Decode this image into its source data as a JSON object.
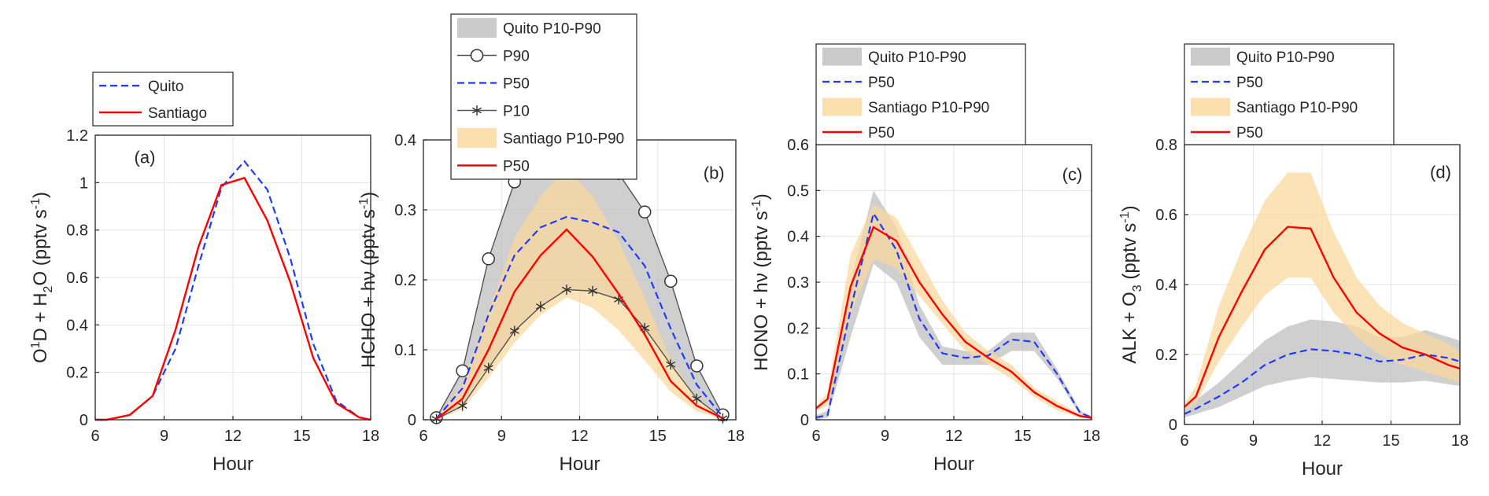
{
  "chart_data": [
    {
      "type": "line",
      "panel_label": "(a)",
      "xlabel": "Hour",
      "ylabel": [
        "O",
        "1",
        "D + H",
        "2",
        "O (pptv s",
        "-1",
        ")"
      ],
      "xlim": [
        6,
        18
      ],
      "ylim": [
        0,
        1.2
      ],
      "xticks": [
        "6",
        "9",
        "12",
        "15",
        "18"
      ],
      "yticks": [
        "0",
        "0.2",
        "0.4",
        "0.6",
        "0.8",
        "1",
        "1.2"
      ],
      "grid": true,
      "legend_position": "top-left-outside",
      "x": [
        6,
        6.5,
        7.5,
        8.5,
        9.5,
        10.5,
        11.5,
        12.5,
        13.5,
        14.5,
        15.5,
        16.5,
        17.5,
        18
      ],
      "series": [
        {
          "name": "Quito",
          "style": "dashed",
          "color": "#1f3bff",
          "values": [
            0,
            0,
            0.02,
            0.1,
            0.3,
            0.65,
            0.98,
            1.09,
            0.97,
            0.68,
            0.32,
            0.08,
            0.01,
            0
          ]
        },
        {
          "name": "Santiago",
          "style": "solid",
          "color": "#ff0000",
          "values": [
            0,
            0,
            0.02,
            0.1,
            0.38,
            0.73,
            0.99,
            1.02,
            0.84,
            0.58,
            0.26,
            0.07,
            0.01,
            0
          ]
        }
      ],
      "bands": []
    },
    {
      "type": "line",
      "panel_label": "(b)",
      "xlabel": "Hour",
      "ylabel": [
        "HCHO + hν (pptv s",
        "-1",
        ")"
      ],
      "xlim": [
        6,
        18
      ],
      "ylim": [
        0,
        0.4
      ],
      "xticks": [
        "6",
        "9",
        "12",
        "15",
        "18"
      ],
      "yticks": [
        "0",
        "0.1",
        "0.2",
        "0.3",
        "0.4"
      ],
      "grid": true,
      "legend_position": "top-outside",
      "x": [
        6.5,
        7.5,
        8.5,
        9.5,
        10.5,
        11.5,
        12.5,
        13.5,
        14.5,
        15.5,
        16.5,
        17.5
      ],
      "series": [
        {
          "name": "P90",
          "style": "circle-marker",
          "color": "#555555",
          "values": [
            0.003,
            0.07,
            0.23,
            0.34,
            0.375,
            0.382,
            0.367,
            0.352,
            0.297,
            0.198,
            0.077,
            0.007
          ]
        },
        {
          "name": "P50",
          "style": "dashed",
          "color": "#1f3bff",
          "values": [
            0.002,
            0.045,
            0.15,
            0.235,
            0.275,
            0.29,
            0.282,
            0.268,
            0.22,
            0.13,
            0.05,
            0.004
          ]
        },
        {
          "name": "P10",
          "style": "star-marker",
          "color": "#555555",
          "values": [
            0.001,
            0.02,
            0.074,
            0.127,
            0.162,
            0.186,
            0.184,
            0.172,
            0.131,
            0.079,
            0.03,
            0.002
          ]
        },
        {
          "name": "P50",
          "style": "solid",
          "color": "#ff0000",
          "values": [
            0.001,
            0.03,
            0.1,
            0.183,
            0.235,
            0.272,
            0.233,
            0.18,
            0.122,
            0.055,
            0.02,
            0.002
          ]
        }
      ],
      "bands": [
        {
          "name": "Quito P10-P90",
          "color": "#bdbdbd",
          "lower": [
            0.001,
            0.02,
            0.074,
            0.127,
            0.162,
            0.186,
            0.184,
            0.172,
            0.131,
            0.079,
            0.03,
            0.002
          ],
          "upper": [
            0.003,
            0.07,
            0.23,
            0.34,
            0.375,
            0.382,
            0.367,
            0.352,
            0.297,
            0.198,
            0.077,
            0.007
          ]
        },
        {
          "name": "Santiago P10-P90",
          "color": "#fad79b",
          "lower": [
            0.0,
            0.015,
            0.06,
            0.11,
            0.15,
            0.175,
            0.16,
            0.128,
            0.085,
            0.04,
            0.012,
            0.001
          ],
          "upper": [
            0.002,
            0.05,
            0.155,
            0.26,
            0.32,
            0.36,
            0.32,
            0.255,
            0.175,
            0.085,
            0.03,
            0.004
          ]
        }
      ]
    },
    {
      "type": "line",
      "panel_label": "(c)",
      "xlabel": "Hour",
      "ylabel": [
        "HONO + hν (pptv s",
        "-1",
        ")"
      ],
      "xlim": [
        6,
        18
      ],
      "ylim": [
        0,
        0.6
      ],
      "xticks": [
        "6",
        "9",
        "12",
        "15",
        "18"
      ],
      "yticks": [
        "0",
        "0.1",
        "0.2",
        "0.3",
        "0.4",
        "0.5",
        "0.6"
      ],
      "grid": true,
      "legend_position": "top-outside",
      "x": [
        6,
        6.5,
        7.5,
        8.5,
        9.5,
        10.5,
        11.5,
        12.5,
        13.5,
        14.5,
        15.5,
        16.5,
        17.5,
        18
      ],
      "series": [
        {
          "name": "P50",
          "style": "dashed",
          "color": "#1f3bff",
          "values": [
            0.005,
            0.01,
            0.24,
            0.45,
            0.37,
            0.22,
            0.145,
            0.135,
            0.14,
            0.175,
            0.17,
            0.1,
            0.015,
            0.005
          ]
        },
        {
          "name": "P50",
          "style": "solid",
          "color": "#ff0000",
          "values": [
            0.025,
            0.045,
            0.29,
            0.42,
            0.39,
            0.3,
            0.23,
            0.17,
            0.135,
            0.105,
            0.06,
            0.03,
            0.008,
            0.004
          ]
        }
      ],
      "bands": [
        {
          "name": "Quito P10-P90",
          "color": "#bdbdbd",
          "lower": [
            0.0,
            0.005,
            0.18,
            0.34,
            0.3,
            0.18,
            0.12,
            0.12,
            0.12,
            0.15,
            0.15,
            0.09,
            0.01,
            0.003
          ],
          "upper": [
            0.01,
            0.02,
            0.3,
            0.5,
            0.42,
            0.25,
            0.16,
            0.15,
            0.15,
            0.19,
            0.19,
            0.11,
            0.02,
            0.008
          ]
        },
        {
          "name": "Santiago P10-P90",
          "color": "#fad79b",
          "lower": [
            0.02,
            0.03,
            0.23,
            0.35,
            0.33,
            0.27,
            0.21,
            0.15,
            0.12,
            0.09,
            0.05,
            0.02,
            0.005,
            0.002
          ],
          "upper": [
            0.03,
            0.06,
            0.36,
            0.47,
            0.44,
            0.35,
            0.26,
            0.19,
            0.15,
            0.12,
            0.07,
            0.04,
            0.012,
            0.006
          ]
        }
      ]
    },
    {
      "type": "line",
      "panel_label": "(d)",
      "xlabel": "Hour",
      "ylabel": [
        "ALK + O",
        "3",
        " (pptv s",
        "-1",
        ")"
      ],
      "xlim": [
        6,
        18
      ],
      "ylim": [
        0,
        0.8
      ],
      "xticks": [
        "6",
        "9",
        "12",
        "15",
        "18"
      ],
      "yticks": [
        "0",
        "0.2",
        "0.4",
        "0.6",
        "0.8"
      ],
      "grid": true,
      "legend_position": "top-outside",
      "x": [
        6,
        6.5,
        7.5,
        8.5,
        9.5,
        10.5,
        11.5,
        12.5,
        13.5,
        14.5,
        15.5,
        16.5,
        17.5,
        18
      ],
      "series": [
        {
          "name": "P50",
          "style": "dashed",
          "color": "#1f3bff",
          "values": [
            0.03,
            0.045,
            0.08,
            0.12,
            0.17,
            0.2,
            0.215,
            0.21,
            0.2,
            0.18,
            0.185,
            0.2,
            0.19,
            0.18
          ]
        },
        {
          "name": "P50",
          "style": "solid",
          "color": "#ff0000",
          "values": [
            0.05,
            0.08,
            0.25,
            0.38,
            0.5,
            0.565,
            0.56,
            0.42,
            0.32,
            0.26,
            0.22,
            0.2,
            0.17,
            0.16
          ]
        }
      ],
      "bands": [
        {
          "name": "Quito P10-P90",
          "color": "#bdbdbd",
          "lower": [
            0.02,
            0.03,
            0.05,
            0.08,
            0.11,
            0.125,
            0.135,
            0.13,
            0.125,
            0.12,
            0.12,
            0.125,
            0.115,
            0.11
          ],
          "upper": [
            0.05,
            0.07,
            0.12,
            0.18,
            0.24,
            0.28,
            0.3,
            0.295,
            0.28,
            0.25,
            0.25,
            0.27,
            0.25,
            0.24
          ]
        },
        {
          "name": "Santiago P10-P90",
          "color": "#fad79b",
          "lower": [
            0.04,
            0.06,
            0.18,
            0.28,
            0.37,
            0.42,
            0.42,
            0.32,
            0.25,
            0.2,
            0.17,
            0.15,
            0.13,
            0.12
          ]
        },
        {
          "name": "Santiago P10-P90",
          "color": "#fad79b",
          "lower": [
            0.04,
            0.06,
            0.18,
            0.28,
            0.37,
            0.42,
            0.42,
            0.32,
            0.25,
            0.2,
            0.17,
            0.15,
            0.13,
            0.12
          ],
          "upper": [
            0.06,
            0.11,
            0.34,
            0.5,
            0.64,
            0.72,
            0.72,
            0.55,
            0.42,
            0.34,
            0.29,
            0.26,
            0.23,
            0.21
          ]
        }
      ]
    }
  ],
  "legends": [
    [
      {
        "label": "Quito",
        "kind": "line",
        "style": "dashed",
        "color": "#1f3bff"
      },
      {
        "label": "Santiago",
        "kind": "line",
        "style": "solid",
        "color": "#ff0000"
      }
    ],
    [
      {
        "label": "Quito P10-P90",
        "kind": "patch",
        "color": "#bdbdbd"
      },
      {
        "label": "P90",
        "kind": "line",
        "style": "circle-marker",
        "color": "#555555"
      },
      {
        "label": "P50",
        "kind": "line",
        "style": "dashed",
        "color": "#1f3bff"
      },
      {
        "label": "P10",
        "kind": "line",
        "style": "star-marker",
        "color": "#555555"
      },
      {
        "label": "Santiago P10-P90",
        "kind": "patch",
        "color": "#fad79b"
      },
      {
        "label": "P50",
        "kind": "line",
        "style": "solid",
        "color": "#ff0000"
      }
    ],
    [
      {
        "label": "Quito P10-P90",
        "kind": "patch",
        "color": "#bdbdbd"
      },
      {
        "label": "P50",
        "kind": "line",
        "style": "dashed",
        "color": "#1f3bff"
      },
      {
        "label": "Santiago P10-P90",
        "kind": "patch",
        "color": "#fad79b"
      },
      {
        "label": "P50",
        "kind": "line",
        "style": "solid",
        "color": "#ff0000"
      }
    ],
    [
      {
        "label": "Quito P10-P90",
        "kind": "patch",
        "color": "#bdbdbd"
      },
      {
        "label": "P50",
        "kind": "line",
        "style": "dashed",
        "color": "#1f3bff"
      },
      {
        "label": "Santiago P10-P90",
        "kind": "patch",
        "color": "#fad79b"
      },
      {
        "label": "P50",
        "kind": "line",
        "style": "solid",
        "color": "#ff0000"
      }
    ]
  ]
}
